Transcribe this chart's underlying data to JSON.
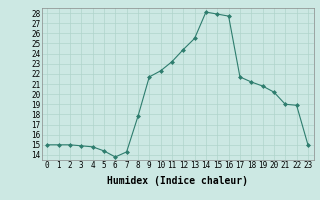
{
  "x": [
    0,
    1,
    2,
    3,
    4,
    5,
    6,
    7,
    8,
    9,
    10,
    11,
    12,
    13,
    14,
    15,
    16,
    17,
    18,
    19,
    20,
    21,
    22,
    23
  ],
  "y": [
    15.0,
    15.0,
    15.0,
    14.9,
    14.8,
    14.4,
    13.8,
    14.3,
    17.8,
    21.7,
    22.3,
    23.2,
    24.4,
    25.5,
    28.1,
    27.9,
    27.7,
    21.7,
    21.2,
    20.8,
    20.2,
    19.0,
    18.9,
    15.0
  ],
  "xlabel": "Humidex (Indice chaleur)",
  "line_color": "#2e7d6e",
  "marker": "D",
  "marker_size": 2.0,
  "bg_color": "#cce8e3",
  "grid_color": "#b0d4cc",
  "ylim": [
    13.5,
    28.5
  ],
  "xlim": [
    -0.5,
    23.5
  ],
  "yticks": [
    14,
    15,
    16,
    17,
    18,
    19,
    20,
    21,
    22,
    23,
    24,
    25,
    26,
    27,
    28
  ],
  "xticks": [
    0,
    1,
    2,
    3,
    4,
    5,
    6,
    7,
    8,
    9,
    10,
    11,
    12,
    13,
    14,
    15,
    16,
    17,
    18,
    19,
    20,
    21,
    22,
    23
  ],
  "tick_fontsize": 5.5,
  "xlabel_fontsize": 7
}
